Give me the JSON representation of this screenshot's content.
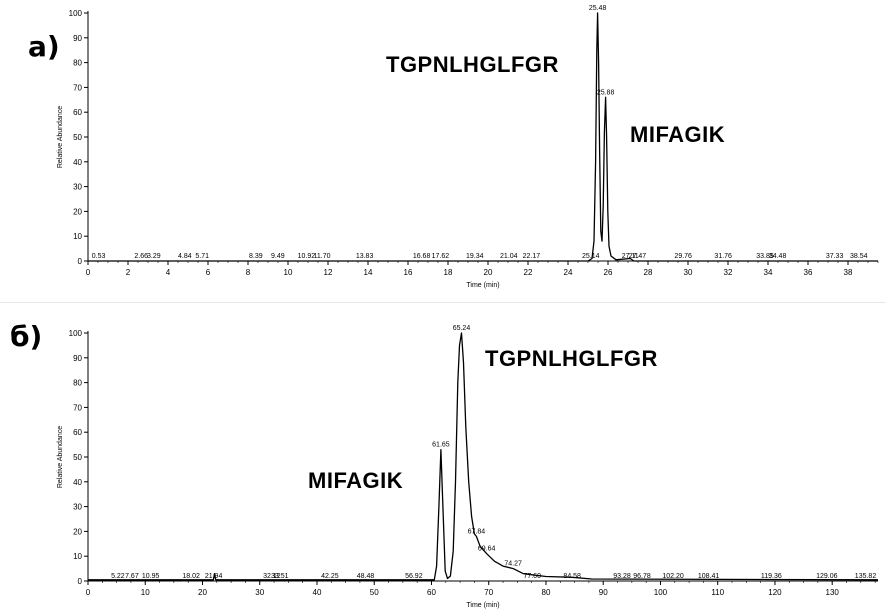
{
  "panels": [
    {
      "label": "а)",
      "peptide_a": "TGPNLHGLFGR",
      "peptide_b": "MIFAGIK"
    },
    {
      "label": "б)",
      "peptide_a": "TGPNLHGLFGR",
      "peptide_b": "MIFAGIK"
    }
  ],
  "colors": {
    "trace": "#000000",
    "axis": "#000000",
    "text": "#000000"
  },
  "chart_data": [
    {
      "type": "line",
      "ylabel": "Relative Abundance",
      "xlabel": "Time (min)",
      "xlim": [
        0,
        39.5
      ],
      "ylim": [
        0,
        100
      ],
      "x_ticks": [
        0,
        2,
        4,
        6,
        8,
        10,
        12,
        14,
        16,
        18,
        20,
        22,
        24,
        26,
        28,
        30,
        32,
        34,
        36,
        38
      ],
      "y_ticks": [
        0,
        10,
        20,
        30,
        40,
        50,
        60,
        70,
        80,
        90,
        100
      ],
      "peak_labels": [
        {
          "x": 0.53,
          "label": "0.53"
        },
        {
          "x": 2.66,
          "label": "2.66"
        },
        {
          "x": 3.29,
          "label": "3.29"
        },
        {
          "x": 4.84,
          "label": "4.84"
        },
        {
          "x": 5.71,
          "label": "5.71"
        },
        {
          "x": 8.39,
          "label": "8.39"
        },
        {
          "x": 9.49,
          "label": "9.49"
        },
        {
          "x": 10.92,
          "label": "10.92"
        },
        {
          "x": 11.7,
          "label": "11.70"
        },
        {
          "x": 13.83,
          "label": "13.83"
        },
        {
          "x": 16.68,
          "label": "16.68"
        },
        {
          "x": 17.62,
          "label": "17.62"
        },
        {
          "x": 19.34,
          "label": "19.34"
        },
        {
          "x": 21.04,
          "label": "21.04"
        },
        {
          "x": 22.17,
          "label": "22.17"
        },
        {
          "x": 25.14,
          "label": "25.14"
        },
        {
          "x": 25.48,
          "label": "25.48",
          "y": 100
        },
        {
          "x": 25.88,
          "label": "25.88",
          "y": 66
        },
        {
          "x": 27.11,
          "label": "27.11"
        },
        {
          "x": 27.47,
          "label": "27.47"
        },
        {
          "x": 29.76,
          "label": "29.76"
        },
        {
          "x": 31.76,
          "label": "31.76"
        },
        {
          "x": 33.85,
          "label": "33.85"
        },
        {
          "x": 34.48,
          "label": "34.48"
        },
        {
          "x": 37.33,
          "label": "37.33"
        },
        {
          "x": 38.54,
          "label": "38.54"
        }
      ],
      "series": [
        {
          "x": [
            0,
            25.0,
            25.2,
            25.3,
            25.38,
            25.44,
            25.48,
            25.53,
            25.58,
            25.64,
            25.7,
            25.76,
            25.82,
            25.88,
            25.93,
            25.99,
            26.05,
            26.15,
            26.4,
            27.11,
            27.3,
            39.5
          ],
          "values": [
            0,
            0,
            1,
            8,
            40,
            85,
            100,
            80,
            45,
            12,
            8,
            22,
            52,
            66,
            50,
            20,
            6,
            2,
            0.5,
            1,
            0,
            0
          ]
        }
      ]
    },
    {
      "type": "line",
      "ylabel": "Relative Abundance",
      "xlabel": "Time (min)",
      "xlim": [
        0,
        138
      ],
      "ylim": [
        0,
        100
      ],
      "x_ticks": [
        0,
        10,
        20,
        30,
        40,
        50,
        60,
        70,
        80,
        90,
        100,
        110,
        120,
        130
      ],
      "y_ticks": [
        0,
        10,
        20,
        30,
        40,
        50,
        60,
        70,
        80,
        90,
        100
      ],
      "peak_labels": [
        {
          "x": 5.22,
          "label": "5.22"
        },
        {
          "x": 7.67,
          "label": "7.67"
        },
        {
          "x": 10.95,
          "label": "10.95"
        },
        {
          "x": 18.02,
          "label": "18.02"
        },
        {
          "x": 21.94,
          "label": "21.94"
        },
        {
          "x": 32.12,
          "label": "32.12"
        },
        {
          "x": 33.51,
          "label": "33.51"
        },
        {
          "x": 42.25,
          "label": "42.25"
        },
        {
          "x": 48.48,
          "label": "48.48"
        },
        {
          "x": 56.92,
          "label": "56.92"
        },
        {
          "x": 61.65,
          "label": "61.65",
          "y": 53
        },
        {
          "x": 65.24,
          "label": "65.24",
          "y": 100
        },
        {
          "x": 67.84,
          "label": "67.84",
          "y": 18
        },
        {
          "x": 69.64,
          "label": "69.64",
          "y": 11
        },
        {
          "x": 74.27,
          "label": "74.27",
          "y": 5
        },
        {
          "x": 77.6,
          "label": "77.60"
        },
        {
          "x": 84.58,
          "label": "84.58"
        },
        {
          "x": 93.28,
          "label": "93.28"
        },
        {
          "x": 96.78,
          "label": "96.78"
        },
        {
          "x": 102.2,
          "label": "102.20"
        },
        {
          "x": 108.41,
          "label": "108.41"
        },
        {
          "x": 119.36,
          "label": "119.36"
        },
        {
          "x": 129.06,
          "label": "129.06"
        },
        {
          "x": 135.82,
          "label": "135.82"
        }
      ],
      "series": [
        {
          "x": [
            0,
            21.9,
            22.1,
            22.3,
            60.5,
            60.9,
            61.3,
            61.65,
            62.0,
            62.4,
            62.8,
            63.3,
            63.8,
            64.2,
            64.6,
            64.9,
            65.24,
            65.6,
            66.0,
            66.5,
            67.0,
            67.5,
            67.84,
            68.5,
            69.64,
            71.0,
            72.5,
            74.27,
            76.0,
            77.6,
            80.0,
            84.58,
            88.0,
            138
          ],
          "values": [
            0.5,
            0.5,
            3,
            0.5,
            0.5,
            6,
            30,
            53,
            30,
            4,
            1,
            2,
            12,
            40,
            80,
            95,
            100,
            88,
            62,
            40,
            26,
            19,
            18,
            14,
            11,
            8,
            6,
            5,
            3,
            2.5,
            1.8,
            1.5,
            0.8,
            0.5
          ]
        }
      ]
    }
  ]
}
